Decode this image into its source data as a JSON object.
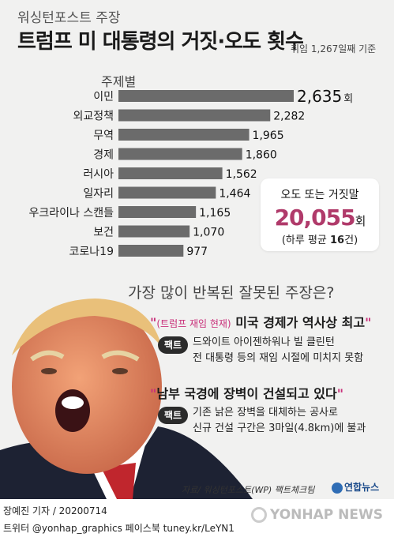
{
  "header": {
    "supertitle": "워싱턴포스트 주장",
    "title": "트럼프 미 대통령의 거짓·오도 횟수",
    "subtitle": "취임 1,267일째 기준"
  },
  "chart_data": {
    "type": "bar",
    "orientation": "horizontal",
    "title": "주제별",
    "value_suffix": "회",
    "categories": [
      "이민",
      "외교정책",
      "무역",
      "경제",
      "러시아",
      "일자리",
      "우크라이나 스캔들",
      "보건",
      "코로나19"
    ],
    "values": [
      2635,
      2282,
      1965,
      1860,
      1562,
      1464,
      1165,
      1070,
      977
    ],
    "value_labels": [
      "2,635",
      "2,282",
      "1,965",
      "1,860",
      "1,562",
      "1,464",
      "1,165",
      "1,070",
      "977"
    ],
    "xlim": [
      0,
      2635
    ],
    "grid": false,
    "bar_color": "#6b6b6b"
  },
  "callout": {
    "line1": "오도 또는 거짓말",
    "total": "20,055",
    "unit": "회",
    "line3_prefix": "(하루 평균 ",
    "line3_value": "16",
    "line3_suffix": "건)"
  },
  "question": "가장 많이 반복된 잘못된 주장은?",
  "claims": [
    {
      "prefix_small": "(트럼프 재임 현재)",
      "text": " 미국 경제가 역사상 최고",
      "fact_label": "팩트",
      "fact_line1": "드와이트 아이젠하워나 빌 클린턴",
      "fact_line2": "전 대통령 등의 재임 시절에 미치지 못함"
    },
    {
      "prefix_small": "",
      "text": "남부 국경에 장벽이 건설되고 있다",
      "fact_label": "팩트",
      "fact_line1": "기존 낡은 장벽을 대체하는 공사로",
      "fact_line2": "신규 건설 구간은 3마일(4.8km)에 불과"
    }
  ],
  "source": "자료/ 워싱턴포스트(WP) 팩트체크팀",
  "logo": "연합뉴스",
  "footer": {
    "reporter": "장예진 기자 / 20200714",
    "social": "트위터 @yonhap_graphics  페이스북 tuney.kr/LeYN1",
    "watermark": "YONHAP NEWS"
  },
  "colors": {
    "accent": "#b03a6a",
    "quote": "#c9307a",
    "bar": "#6b6b6b"
  }
}
